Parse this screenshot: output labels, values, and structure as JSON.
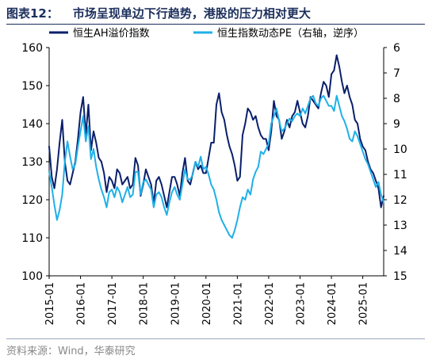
{
  "header": {
    "figure_label": "图表12：",
    "title": "市场呈现单边下行趋势，港股的压力相对更大"
  },
  "footer": {
    "source_label": "资料来源：",
    "source_text": "Wind，华泰研究"
  },
  "colors": {
    "ah_premium": "#0a1f6b",
    "hsi_pe": "#1fb0e8",
    "title": "#1c2f5c"
  },
  "chart_data": {
    "type": "line",
    "title": "市场呈现单边下行趋势，港股的压力相对更大",
    "legend_position": "top",
    "grid": false,
    "x_ticks": [
      "2015-01",
      "2016-01",
      "2017-01",
      "2018-01",
      "2019-01",
      "2020-01",
      "2021-01",
      "2022-01",
      "2023-01",
      "2024-01",
      "2025-01"
    ],
    "x_range": [
      "2015-01",
      "2025-09"
    ],
    "left_axis": {
      "ylim": [
        100,
        160
      ],
      "ticks": [
        100,
        110,
        120,
        130,
        140,
        150,
        160
      ]
    },
    "right_axis": {
      "ylim": [
        6,
        15
      ],
      "inverted": true,
      "ticks": [
        6,
        7,
        8,
        9,
        10,
        11,
        12,
        13,
        14,
        15
      ]
    },
    "series": [
      {
        "name": "恒生AH溢价指数",
        "axis": "left",
        "color": "#0a1f6b",
        "x": [
          "2015-01",
          "2015-02",
          "2015-03",
          "2015-04",
          "2015-05",
          "2015-06",
          "2015-07",
          "2015-08",
          "2015-09",
          "2015-10",
          "2015-11",
          "2015-12",
          "2016-01",
          "2016-02",
          "2016-03",
          "2016-04",
          "2016-05",
          "2016-06",
          "2016-07",
          "2016-08",
          "2016-09",
          "2016-10",
          "2016-11",
          "2016-12",
          "2017-01",
          "2017-02",
          "2017-03",
          "2017-04",
          "2017-05",
          "2017-06",
          "2017-07",
          "2017-08",
          "2017-09",
          "2017-10",
          "2017-11",
          "2017-12",
          "2018-01",
          "2018-02",
          "2018-03",
          "2018-04",
          "2018-05",
          "2018-06",
          "2018-07",
          "2018-08",
          "2018-09",
          "2018-10",
          "2018-11",
          "2018-12",
          "2019-01",
          "2019-02",
          "2019-03",
          "2019-04",
          "2019-05",
          "2019-06",
          "2019-07",
          "2019-08",
          "2019-09",
          "2019-10",
          "2019-11",
          "2019-12",
          "2020-01",
          "2020-02",
          "2020-03",
          "2020-04",
          "2020-05",
          "2020-06",
          "2020-07",
          "2020-08",
          "2020-09",
          "2020-10",
          "2020-11",
          "2020-12",
          "2021-01",
          "2021-02",
          "2021-03",
          "2021-04",
          "2021-05",
          "2021-06",
          "2021-07",
          "2021-08",
          "2021-09",
          "2021-10",
          "2021-11",
          "2021-12",
          "2022-01",
          "2022-02",
          "2022-03",
          "2022-04",
          "2022-05",
          "2022-06",
          "2022-07",
          "2022-08",
          "2022-09",
          "2022-10",
          "2022-11",
          "2022-12",
          "2023-01",
          "2023-02",
          "2023-03",
          "2023-04",
          "2023-05",
          "2023-06",
          "2023-07",
          "2023-08",
          "2023-09",
          "2023-10",
          "2023-11",
          "2023-12",
          "2024-01",
          "2024-02",
          "2024-03",
          "2024-04",
          "2024-05",
          "2024-06",
          "2024-07",
          "2024-08",
          "2024-09",
          "2024-10",
          "2024-11",
          "2024-12",
          "2025-01",
          "2025-02",
          "2025-03",
          "2025-04",
          "2025-05",
          "2025-06",
          "2025-07",
          "2025-08",
          "2025-09"
        ],
        "values": [
          134,
          126,
          123,
          128,
          135,
          141,
          130,
          125,
          124,
          127,
          130,
          136,
          143,
          147,
          137,
          145,
          133,
          138,
          135,
          131,
          130,
          127,
          122,
          126,
          125,
          123,
          128,
          127,
          124,
          125,
          126,
          123,
          124,
          131,
          129,
          121,
          124,
          128,
          126,
          124,
          119,
          125,
          126,
          124,
          121,
          118,
          122,
          126,
          126,
          124,
          121,
          127,
          131,
          125,
          124,
          127,
          130,
          128,
          129,
          127,
          127,
          131,
          135,
          135,
          145,
          148,
          143,
          141,
          137,
          134,
          132,
          129,
          125,
          126,
          137,
          140,
          144,
          143,
          141,
          142,
          139,
          137,
          136,
          136,
          133,
          138,
          146,
          142,
          141,
          136,
          138,
          141,
          139,
          142,
          143,
          146,
          143,
          140,
          139,
          142,
          147,
          146,
          145,
          144,
          148,
          151,
          150,
          147,
          153,
          154,
          158,
          155,
          151,
          148,
          150,
          147,
          145,
          141,
          140,
          136,
          134,
          133,
          130,
          128,
          127,
          125,
          123,
          118,
          121
        ],
        "legend_pos_hint": "left"
      },
      {
        "name": "恒生指数动态PE（右轴，逆序）",
        "axis": "right",
        "color": "#1fb0e8",
        "x": [
          "2015-01",
          "2015-02",
          "2015-03",
          "2015-04",
          "2015-05",
          "2015-06",
          "2015-07",
          "2015-08",
          "2015-09",
          "2015-10",
          "2015-11",
          "2015-12",
          "2016-01",
          "2016-02",
          "2016-03",
          "2016-04",
          "2016-05",
          "2016-06",
          "2016-07",
          "2016-08",
          "2016-09",
          "2016-10",
          "2016-11",
          "2016-12",
          "2017-01",
          "2017-02",
          "2017-03",
          "2017-04",
          "2017-05",
          "2017-06",
          "2017-07",
          "2017-08",
          "2017-09",
          "2017-10",
          "2017-11",
          "2017-12",
          "2018-01",
          "2018-02",
          "2018-03",
          "2018-04",
          "2018-05",
          "2018-06",
          "2018-07",
          "2018-08",
          "2018-09",
          "2018-10",
          "2018-11",
          "2018-12",
          "2019-01",
          "2019-02",
          "2019-03",
          "2019-04",
          "2019-05",
          "2019-06",
          "2019-07",
          "2019-08",
          "2019-09",
          "2019-10",
          "2019-11",
          "2019-12",
          "2020-01",
          "2020-02",
          "2020-03",
          "2020-04",
          "2020-05",
          "2020-06",
          "2020-07",
          "2020-08",
          "2020-09",
          "2020-10",
          "2020-11",
          "2020-12",
          "2021-01",
          "2021-02",
          "2021-03",
          "2021-04",
          "2021-05",
          "2021-06",
          "2021-07",
          "2021-08",
          "2021-09",
          "2021-10",
          "2021-11",
          "2021-12",
          "2022-01",
          "2022-02",
          "2022-03",
          "2022-04",
          "2022-05",
          "2022-06",
          "2022-07",
          "2022-08",
          "2022-09",
          "2022-10",
          "2022-11",
          "2022-12",
          "2023-01",
          "2023-02",
          "2023-03",
          "2023-04",
          "2023-05",
          "2023-06",
          "2023-07",
          "2023-08",
          "2023-09",
          "2023-10",
          "2023-11",
          "2023-12",
          "2024-01",
          "2024-02",
          "2024-03",
          "2024-04",
          "2024-05",
          "2024-06",
          "2024-07",
          "2024-08",
          "2024-09",
          "2024-10",
          "2024-11",
          "2024-12",
          "2025-01",
          "2025-02",
          "2025-03",
          "2025-04",
          "2025-05",
          "2025-06",
          "2025-07",
          "2025-08",
          "2025-09"
        ],
        "values": [
          10.9,
          11.5,
          12.2,
          12.8,
          12.4,
          11.8,
          10.5,
          9.7,
          10.3,
          10.8,
          10.6,
          9.9,
          9.3,
          8.7,
          9.7,
          9.1,
          10.4,
          10.0,
          10.7,
          11.2,
          11.6,
          11.9,
          12.3,
          11.7,
          11.6,
          11.9,
          11.5,
          11.7,
          12.1,
          11.8,
          11.5,
          11.9,
          11.8,
          10.9,
          10.9,
          11.8,
          11.3,
          11.2,
          11.4,
          11.6,
          12.3,
          11.8,
          11.7,
          11.9,
          12.3,
          12.6,
          12.1,
          11.7,
          11.5,
          11.8,
          12.0,
          11.4,
          10.8,
          11.2,
          11.2,
          11.0,
          10.5,
          10.7,
          10.3,
          10.8,
          10.7,
          11.0,
          11.4,
          11.6,
          12.0,
          12.5,
          12.8,
          13.0,
          13.2,
          13.4,
          13.5,
          13.2,
          12.8,
          12.3,
          11.9,
          12.0,
          11.6,
          11.8,
          11.2,
          10.9,
          10.7,
          10.1,
          10.2,
          10.0,
          9.8,
          9.0,
          8.7,
          8.4,
          8.9,
          9.3,
          9.2,
          9.0,
          8.8,
          8.9,
          8.7,
          8.6,
          8.7,
          8.4,
          8.6,
          8.3,
          8.0,
          7.9,
          8.2,
          8.3,
          8.0,
          7.9,
          8.1,
          8.3,
          8.3,
          8.5,
          7.9,
          8.3,
          8.7,
          8.9,
          9.2,
          9.6,
          9.7,
          9.3,
          9.5,
          9.8,
          10.1,
          10.4,
          10.6,
          10.9,
          11.2,
          11.5,
          11.3,
          11.8,
          12.1
        ]
      }
    ]
  }
}
